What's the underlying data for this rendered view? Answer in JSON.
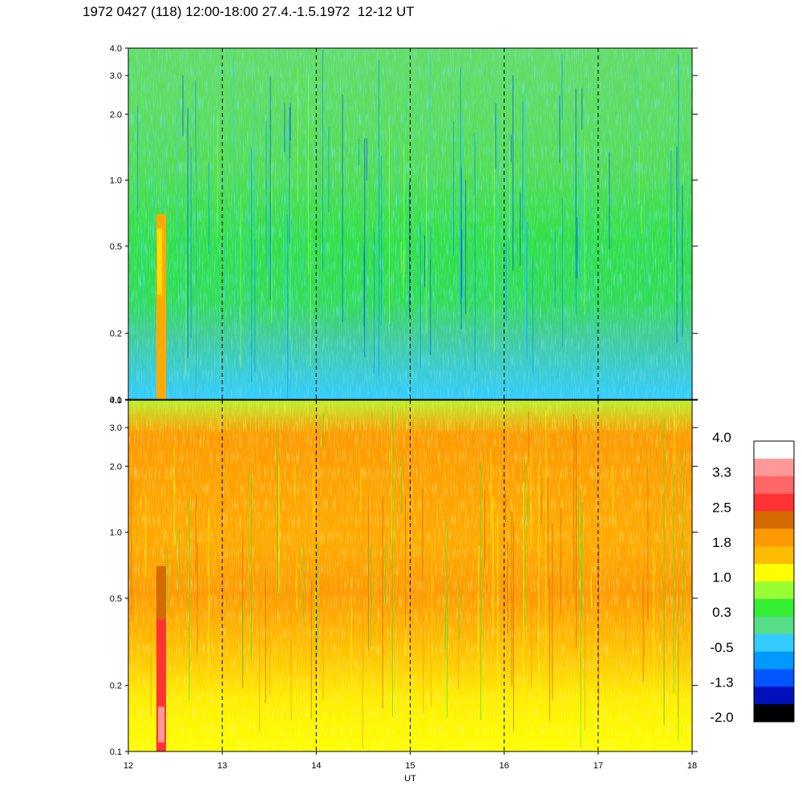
{
  "title": "1972 0427 (118) 12:00-18:00 27.4.-1.5.1972  12-12 UT",
  "chart_data": [
    {
      "type": "heatmap",
      "panel": "top",
      "x_range": [
        12,
        18
      ],
      "x_ticks": [
        "12",
        "13",
        "14",
        "15",
        "16",
        "17",
        "18"
      ],
      "y_scale": "log",
      "y_range": [
        0.1,
        4.0
      ],
      "y_ticks": [
        "0.1",
        "0.2",
        "0.5",
        "1.0",
        "2.0",
        "3.0",
        "4.0"
      ],
      "dashed_verticals": [
        13,
        14,
        15,
        16,
        17
      ],
      "dominant_levels": "low-frequency band mostly -0.5 (light blue); middle 0.3 (green); upper 0.3 to 1.0 mixed",
      "features": [
        {
          "x": 12.35,
          "note": "narrow burst extending from 0.1 to ~0.7 at level 1.0-1.8"
        }
      ]
    },
    {
      "type": "heatmap",
      "panel": "bottom",
      "x_range": [
        12,
        18
      ],
      "x_ticks": [
        "12",
        "13",
        "14",
        "15",
        "16",
        "17",
        "18"
      ],
      "xlabel": "UT",
      "y_scale": "log",
      "y_range": [
        0.1,
        4.0
      ],
      "y_ticks": [
        "0.1",
        "0.2",
        "0.5",
        "1.0",
        "2.0",
        "3.0",
        "4.0"
      ],
      "dashed_verticals": [
        13,
        14,
        15,
        16,
        17
      ],
      "dominant_levels": "low band 1.0 (yellow); middle 1.8 (orange); upper 1.0 to 1.8 mixed",
      "features": [
        {
          "x": 12.35,
          "note": "narrow burst extending from 0.1 to ~0.7 at level 2.5-3.3"
        }
      ]
    }
  ],
  "colorbar": {
    "labels": [
      "4.0",
      "3.3",
      "2.5",
      "1.8",
      "1.0",
      "0.3",
      "-0.5",
      "-1.3",
      "-2.0"
    ],
    "colors": [
      "#ffffff",
      "#ff9999",
      "#ff6666",
      "#ff3333",
      "#d46a00",
      "#ff9900",
      "#ffbb00",
      "#ffff00",
      "#99ff33",
      "#33ee33",
      "#55dd88",
      "#33ccff",
      "#0099ff",
      "#0055ff",
      "#0011bb",
      "#000000"
    ]
  }
}
